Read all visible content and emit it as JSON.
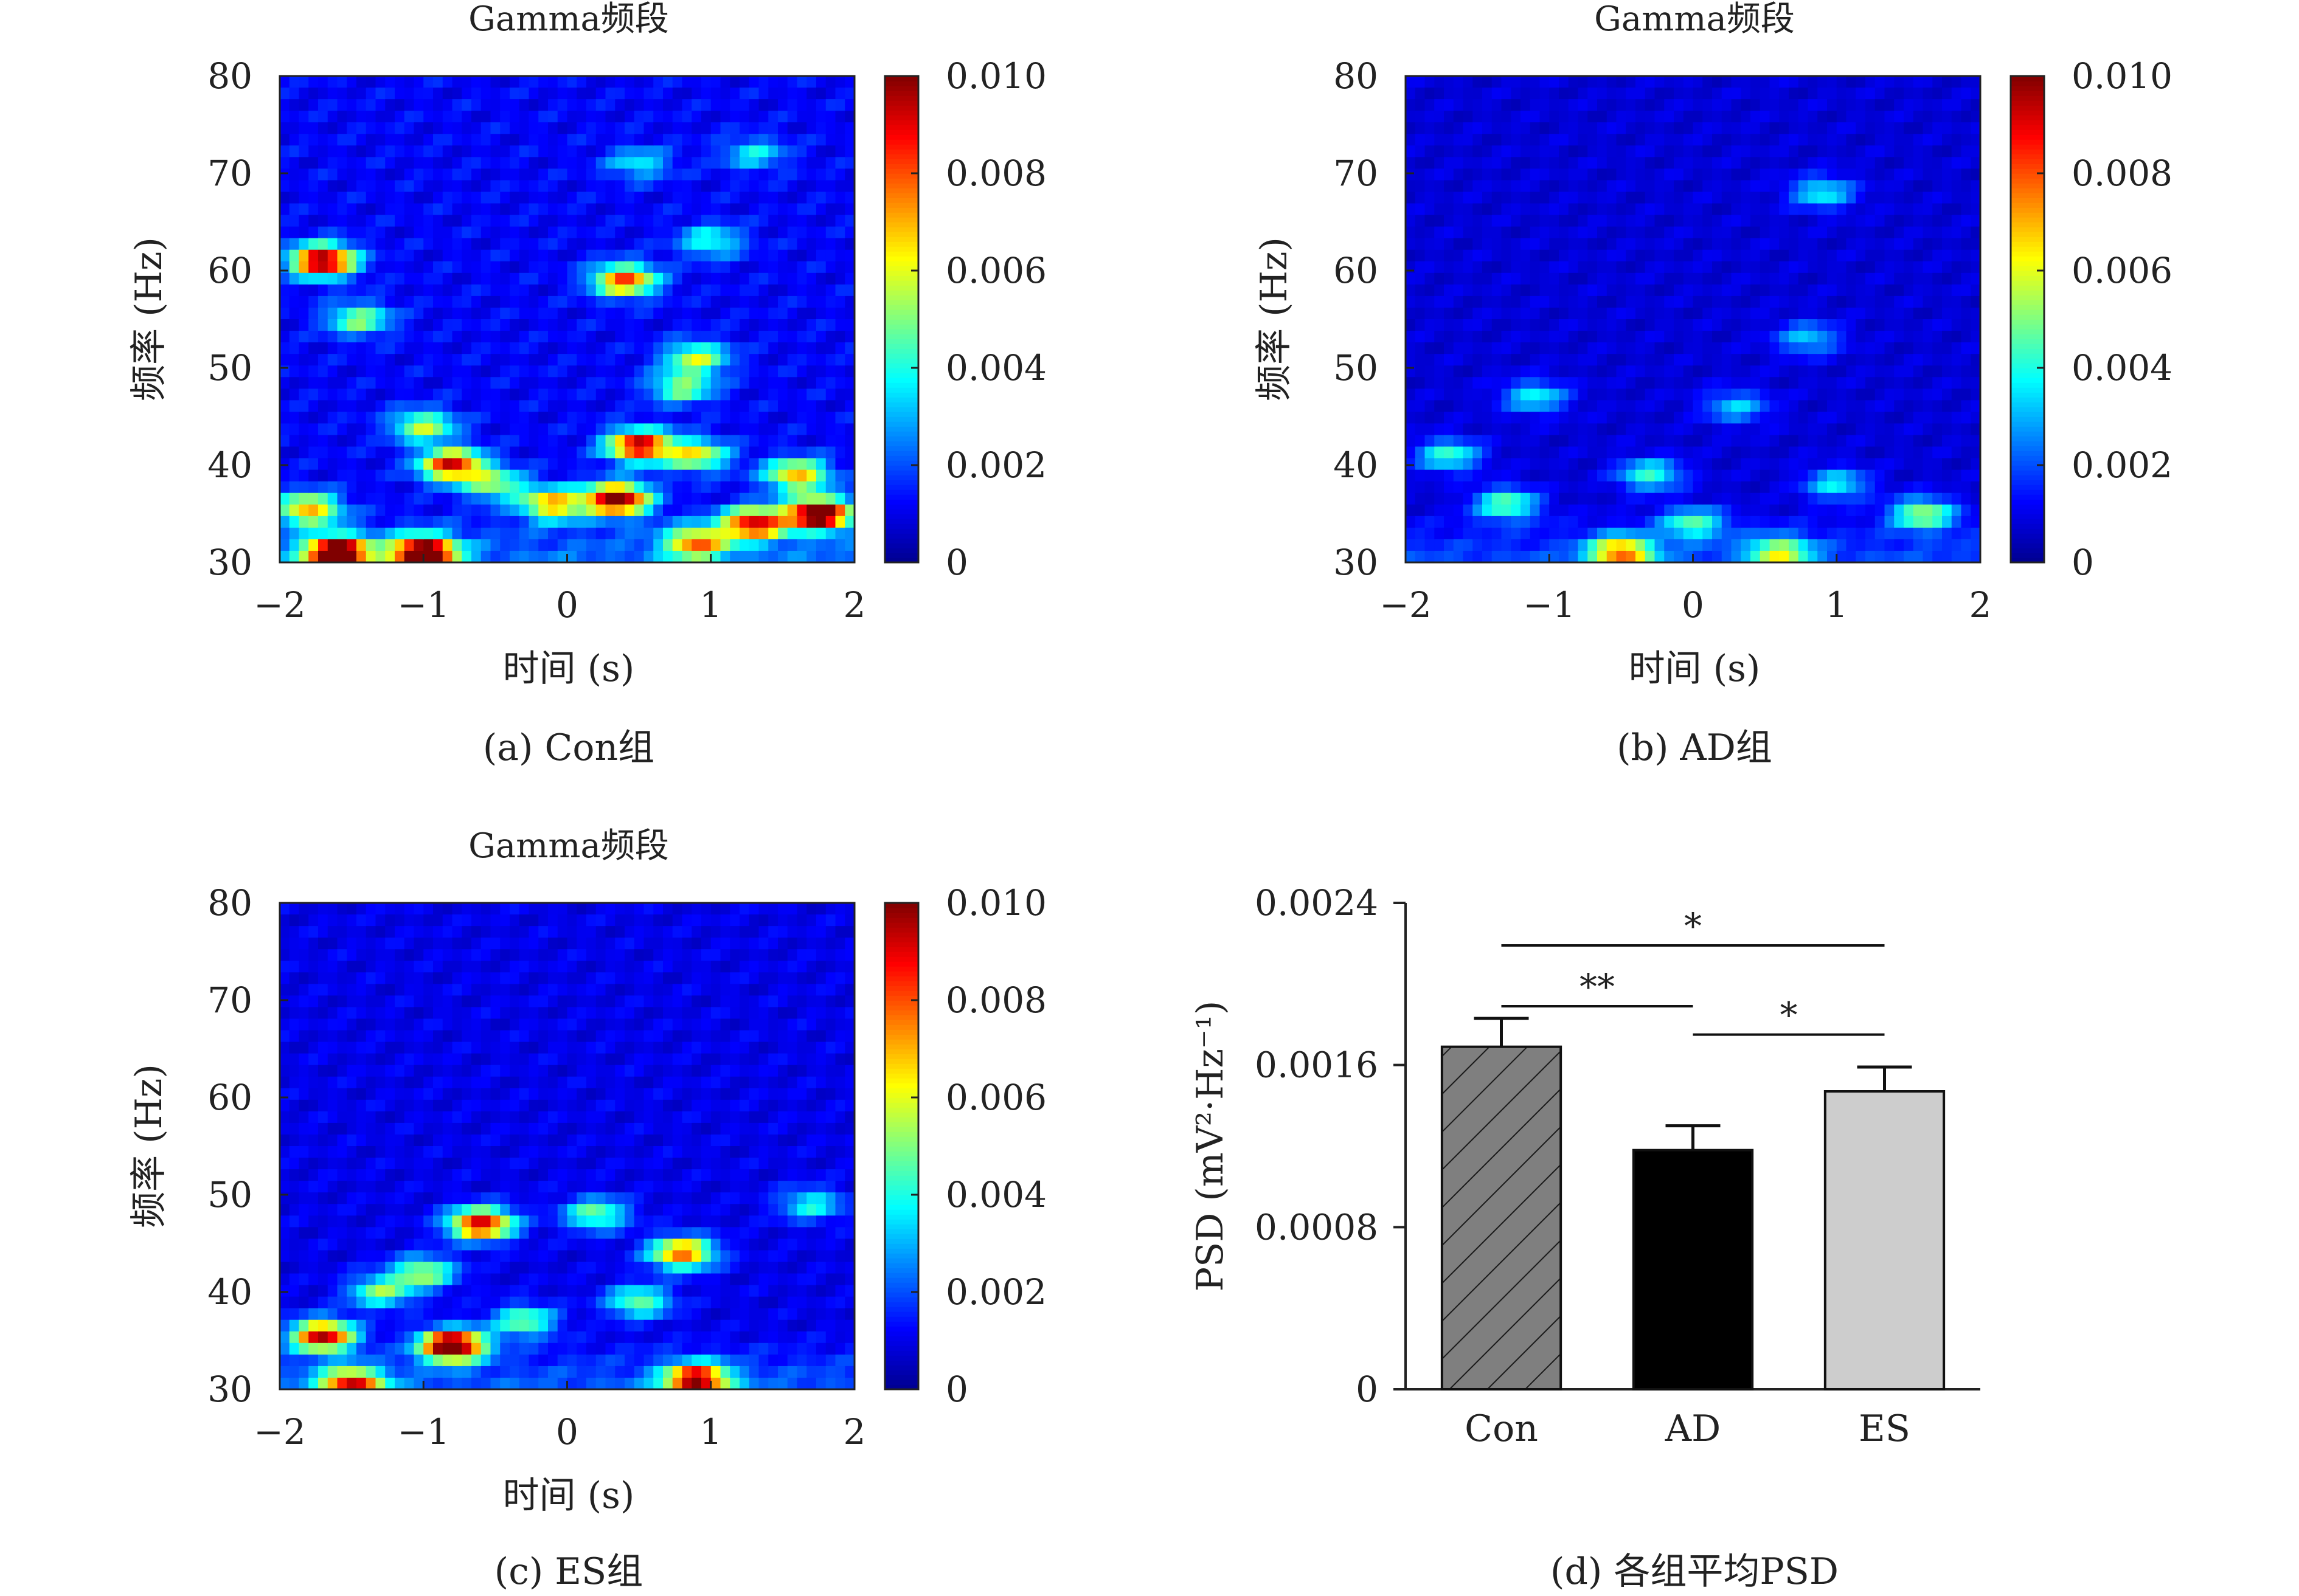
{
  "figure": {
    "colorbar_ticks": [
      "0.010",
      "0.008",
      "0.006",
      "0.004",
      "0.002",
      "0"
    ],
    "colormap": [
      "#00008f",
      "#0000ff",
      "#0080ff",
      "#00ffff",
      "#80ff80",
      "#ffff00",
      "#ff8000",
      "#ff0000",
      "#800000"
    ]
  },
  "chart_data": [
    {
      "id": "a",
      "type": "heatmap",
      "title": "Gamma频段",
      "caption": "(a) Con组",
      "xlabel": "时间 (s)",
      "ylabel": "频率 (Hz)",
      "xlim": [
        -2,
        2
      ],
      "ylim": [
        30,
        80
      ],
      "xticks": [
        "−2",
        "−1",
        "0",
        "1",
        "2"
      ],
      "yticks": [
        "30",
        "40",
        "50",
        "60",
        "70",
        "80"
      ],
      "clim": [
        0,
        0.01
      ],
      "background_level": 0.0012,
      "hotspots": [
        {
          "t": -1.7,
          "f": 61,
          "v": 0.0095
        },
        {
          "t": -1.45,
          "f": 55,
          "v": 0.004
        },
        {
          "t": 0.4,
          "f": 59,
          "v": 0.007
        },
        {
          "t": 1.0,
          "f": 63,
          "v": 0.003
        },
        {
          "t": 0.9,
          "f": 51,
          "v": 0.0045
        },
        {
          "t": 0.8,
          "f": 48,
          "v": 0.004
        },
        {
          "t": -1.0,
          "f": 44,
          "v": 0.0045
        },
        {
          "t": -0.8,
          "f": 40,
          "v": 0.008
        },
        {
          "t": 0.5,
          "f": 42,
          "v": 0.0085
        },
        {
          "t": 0.9,
          "f": 41,
          "v": 0.005
        },
        {
          "t": 0.35,
          "f": 36.5,
          "v": 0.0095
        },
        {
          "t": -0.1,
          "f": 36,
          "v": 0.006
        },
        {
          "t": -1.8,
          "f": 35.5,
          "v": 0.006
        },
        {
          "t": 1.6,
          "f": 39,
          "v": 0.006
        },
        {
          "t": 1.75,
          "f": 35,
          "v": 0.0105
        },
        {
          "t": 1.3,
          "f": 34,
          "v": 0.008
        },
        {
          "t": -1.6,
          "f": 31,
          "v": 0.0105
        },
        {
          "t": -1.0,
          "f": 31,
          "v": 0.0105
        },
        {
          "t": 0.9,
          "f": 32,
          "v": 0.006
        },
        {
          "t": -0.5,
          "f": 38,
          "v": 0.004
        },
        {
          "t": 1.3,
          "f": 72,
          "v": 0.0025
        },
        {
          "t": 0.5,
          "f": 71,
          "v": 0.0025
        }
      ]
    },
    {
      "id": "b",
      "type": "heatmap",
      "title": "Gamma频段",
      "caption": "(b) AD组",
      "xlabel": "时间 (s)",
      "ylabel": "频率 (Hz)",
      "xlim": [
        -2,
        2
      ],
      "ylim": [
        30,
        80
      ],
      "xticks": [
        "−2",
        "−1",
        "0",
        "1",
        "2"
      ],
      "yticks": [
        "30",
        "40",
        "50",
        "60",
        "70",
        "80"
      ],
      "clim": [
        0,
        0.01
      ],
      "background_level": 0.0008,
      "hotspots": [
        {
          "t": -0.5,
          "f": 31,
          "v": 0.0065
        },
        {
          "t": -1.3,
          "f": 36,
          "v": 0.004
        },
        {
          "t": -0.3,
          "f": 39,
          "v": 0.0035
        },
        {
          "t": 0.6,
          "f": 31,
          "v": 0.0045
        },
        {
          "t": 1.6,
          "f": 35,
          "v": 0.0045
        },
        {
          "t": -1.1,
          "f": 47,
          "v": 0.003
        },
        {
          "t": 0.9,
          "f": 68,
          "v": 0.003
        },
        {
          "t": 0.3,
          "f": 46,
          "v": 0.0025
        },
        {
          "t": 0.8,
          "f": 53,
          "v": 0.0025
        },
        {
          "t": -1.7,
          "f": 41,
          "v": 0.0035
        },
        {
          "t": 0.0,
          "f": 34,
          "v": 0.0035
        },
        {
          "t": 1.0,
          "f": 38,
          "v": 0.003
        }
      ]
    },
    {
      "id": "c",
      "type": "heatmap",
      "title": "Gamma频段",
      "caption": "(c) ES组",
      "xlabel": "时间 (s)",
      "ylabel": "频率 (Hz)",
      "xlim": [
        -2,
        2
      ],
      "ylim": [
        30,
        80
      ],
      "xticks": [
        "−2",
        "−1",
        "0",
        "1",
        "2"
      ],
      "yticks": [
        "30",
        "40",
        "50",
        "60",
        "70",
        "80"
      ],
      "clim": [
        0,
        0.01
      ],
      "background_level": 0.001,
      "hotspots": [
        {
          "t": -0.6,
          "f": 47,
          "v": 0.0085
        },
        {
          "t": 0.2,
          "f": 48,
          "v": 0.004
        },
        {
          "t": 0.8,
          "f": 44,
          "v": 0.007
        },
        {
          "t": -0.8,
          "f": 34.5,
          "v": 0.0105
        },
        {
          "t": -1.7,
          "f": 35.5,
          "v": 0.0085
        },
        {
          "t": -1.5,
          "f": 30.5,
          "v": 0.0075
        },
        {
          "t": 0.9,
          "f": 31,
          "v": 0.0085
        },
        {
          "t": -1.3,
          "f": 40,
          "v": 0.004
        },
        {
          "t": 0.5,
          "f": 39,
          "v": 0.004
        },
        {
          "t": -0.3,
          "f": 37,
          "v": 0.004
        },
        {
          "t": 1.7,
          "f": 49,
          "v": 0.003
        },
        {
          "t": -1.0,
          "f": 42,
          "v": 0.0045
        }
      ]
    },
    {
      "id": "d",
      "type": "bar",
      "caption": "(d) 各组平均PSD",
      "ylabel": "PSD (mV²·Hz⁻¹)",
      "categories": [
        "Con",
        "AD",
        "ES"
      ],
      "values": [
        0.00169,
        0.00118,
        0.00147
      ],
      "errors": [
        0.00014,
        0.00012,
        0.00012
      ],
      "ylim": [
        0,
        0.0024
      ],
      "yticks": [
        "0",
        "0.0008",
        "0.0016",
        "0.0024"
      ],
      "fills": [
        "#7f7f7f",
        "#000000",
        "#cdcdcd"
      ],
      "hatch": [
        true,
        false,
        false
      ],
      "significance": [
        {
          "from": 0,
          "to": 1,
          "label": "**",
          "y": 0.00189
        },
        {
          "from": 1,
          "to": 2,
          "label": "*",
          "y": 0.00175
        },
        {
          "from": 0,
          "to": 2,
          "label": "*",
          "y": 0.00219
        }
      ]
    }
  ]
}
